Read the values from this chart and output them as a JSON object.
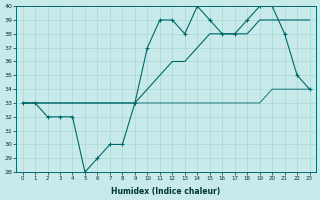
{
  "xlabel": "Humidex (Indice chaleur)",
  "bg_color": "#c8eaea",
  "grid_color": "#a8d8d8",
  "line_color": "#006868",
  "x_hours": [
    0,
    1,
    2,
    3,
    4,
    5,
    6,
    7,
    8,
    9,
    10,
    11,
    12,
    13,
    14,
    15,
    16,
    17,
    18,
    19,
    20,
    21,
    22,
    23
  ],
  "series_actual": [
    33,
    33,
    32,
    32,
    32,
    28,
    29,
    30,
    30,
    33,
    37,
    39,
    39,
    38,
    40,
    39,
    38,
    38,
    39,
    40,
    40,
    38,
    35,
    34
  ],
  "series_smooth": [
    33,
    33,
    33,
    33,
    33,
    33,
    33,
    33,
    33,
    33,
    34,
    35,
    36,
    36,
    37,
    38,
    38,
    38,
    38,
    39,
    39,
    39,
    39,
    39
  ],
  "series_min": [
    33,
    33,
    33,
    33,
    33,
    33,
    33,
    33,
    33,
    33,
    33,
    33,
    33,
    33,
    33,
    33,
    33,
    33,
    33,
    33,
    34,
    34,
    34,
    34
  ],
  "ylim": [
    28,
    40
  ],
  "xlim_min": -0.5,
  "xlim_max": 23.5,
  "yticks": [
    28,
    29,
    30,
    31,
    32,
    33,
    34,
    35,
    36,
    37,
    38,
    39,
    40
  ],
  "xticks": [
    0,
    1,
    2,
    3,
    4,
    5,
    6,
    7,
    8,
    9,
    10,
    11,
    12,
    13,
    14,
    15,
    16,
    17,
    18,
    19,
    20,
    21,
    22,
    23
  ]
}
